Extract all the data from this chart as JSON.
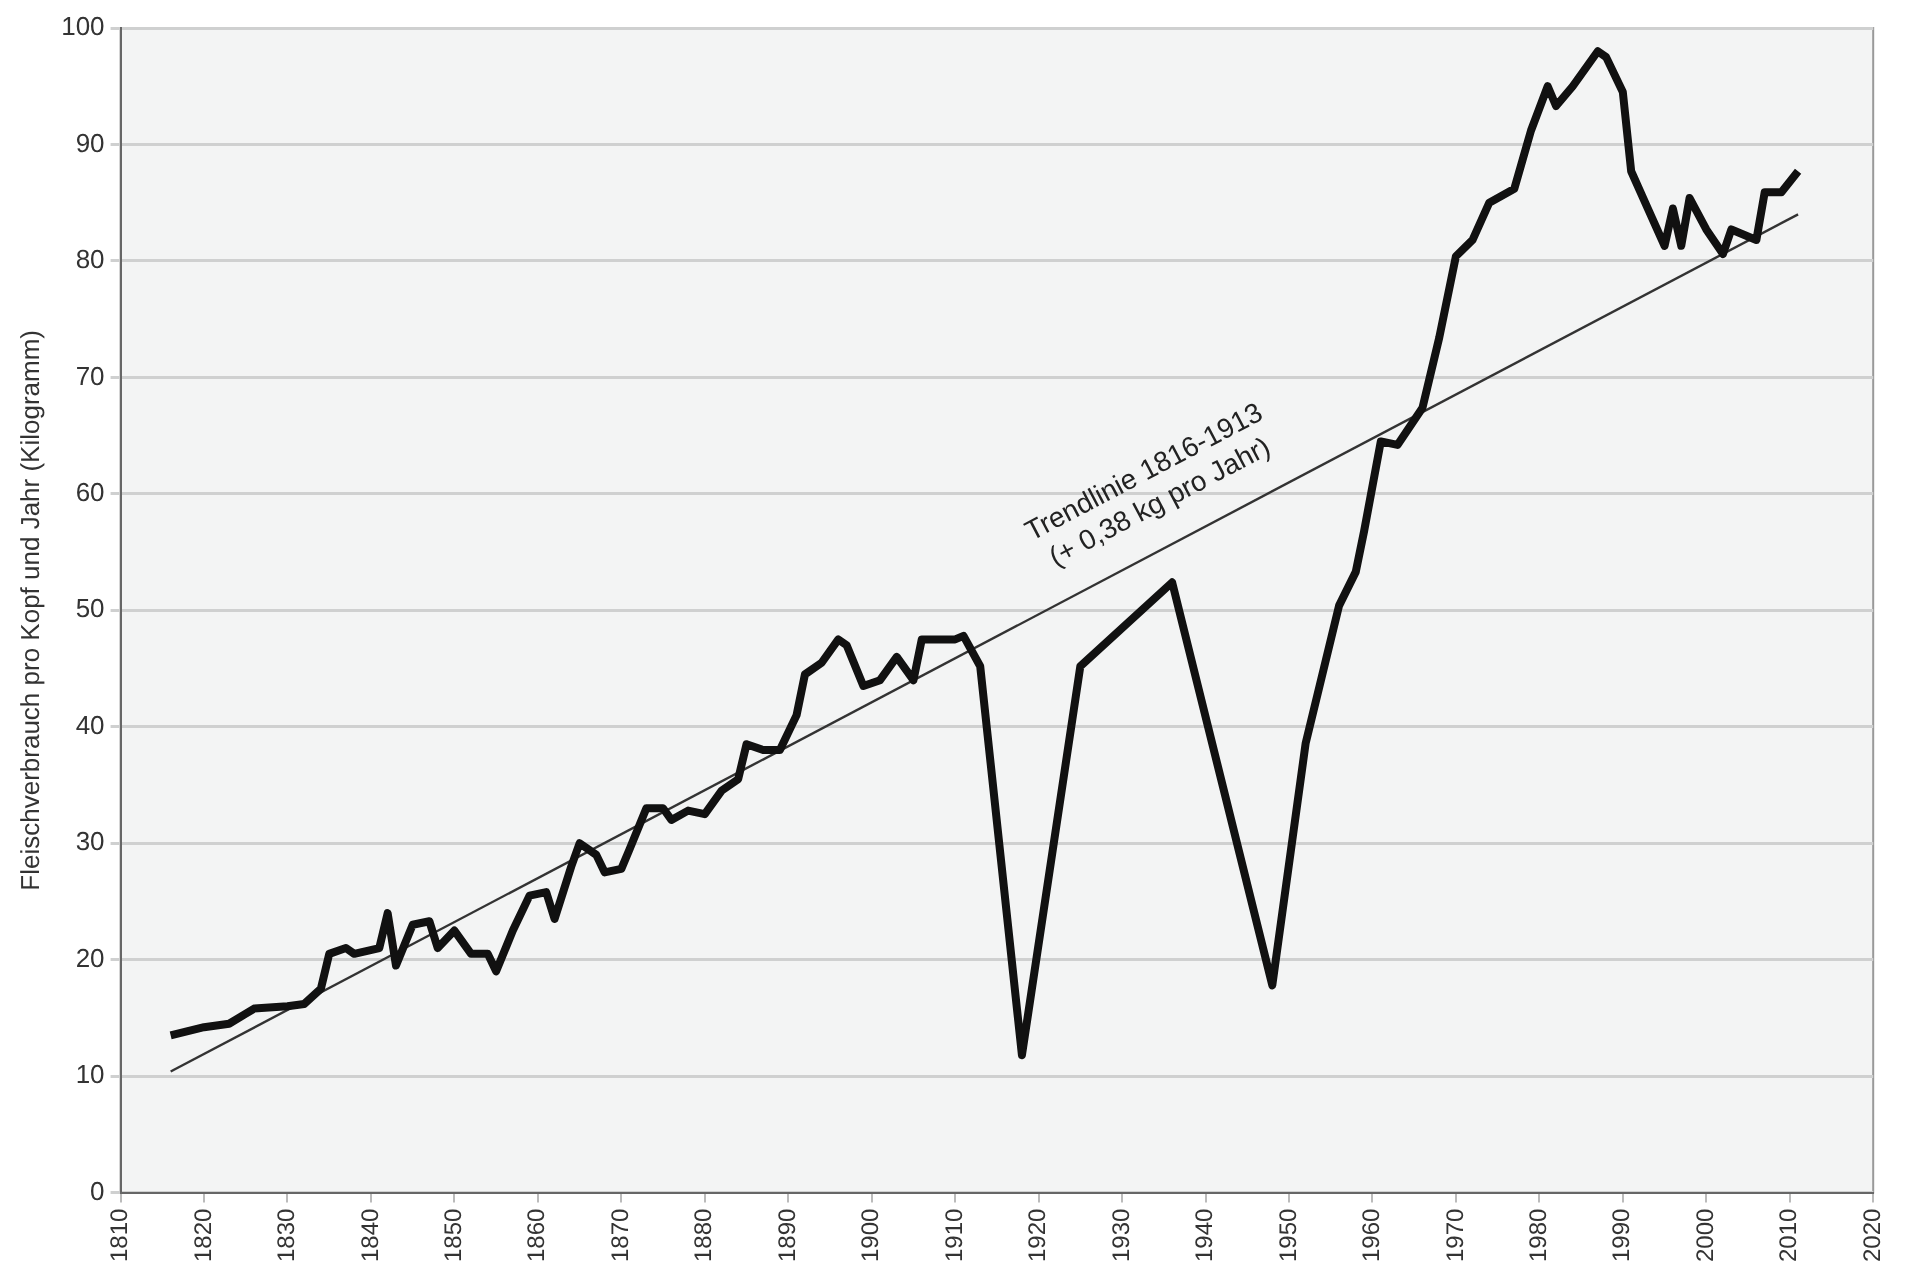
{
  "chart_data": {
    "type": "line",
    "ylabel": "Fleischverbrauch pro Kopf und Jahr (Kilogramm)",
    "xlim": [
      1810,
      2020
    ],
    "xticks": [
      1810,
      1820,
      1830,
      1840,
      1850,
      1860,
      1870,
      1880,
      1890,
      1900,
      1910,
      1920,
      1930,
      1940,
      1950,
      1960,
      1970,
      1980,
      1990,
      2000,
      2010,
      2020
    ],
    "ylim": [
      0,
      100
    ],
    "yticks": [
      0,
      10,
      20,
      30,
      40,
      50,
      60,
      70,
      80,
      90,
      100
    ],
    "grid": "y",
    "legend": false,
    "marker": "none",
    "line_style": "solid",
    "annotations": [
      "Trendlinie 1816-1913\n(+ 0,38 kg pro Jahr)"
    ],
    "series": [
      {
        "color": "#111111",
        "x": [
          1816,
          1820,
          1823,
          1826,
          1830,
          1832,
          1834,
          1835,
          1837,
          1838,
          1841,
          1842,
          1843,
          1845,
          1847,
          1848,
          1850,
          1852,
          1854,
          1855,
          1857,
          1859,
          1861,
          1862,
          1864,
          1865,
          1867,
          1868,
          1870,
          1871,
          1873,
          1875,
          1876,
          1878,
          1880,
          1882,
          1884,
          1885,
          1887,
          1889,
          1891,
          1892,
          1894,
          1896,
          1897,
          1899,
          1901,
          1903,
          1905,
          1906,
          1908,
          1910,
          1911,
          1913,
          1918,
          1925,
          1936,
          1948,
          1952,
          1956,
          1958,
          1959,
          1961,
          1963,
          1966,
          1968,
          1970,
          1972,
          1974,
          1977,
          1979,
          1981,
          1982,
          1984,
          1987,
          1988,
          1990,
          1991,
          1993,
          1995,
          1996,
          1997,
          1998,
          2000,
          2002,
          2003,
          2006,
          2007,
          2009,
          2011
        ],
        "values": [
          13.5,
          14.2,
          14.5,
          15.8,
          16,
          16.2,
          17.5,
          20.5,
          21,
          20.5,
          21,
          24,
          19.5,
          23,
          23.3,
          21,
          22.5,
          20.5,
          20.5,
          19,
          22.5,
          25.5,
          25.8,
          23.5,
          28,
          30,
          29,
          27.5,
          27.8,
          29.5,
          33,
          33,
          32,
          32.8,
          32.5,
          34.5,
          35.5,
          38.5,
          38,
          38,
          41,
          44.5,
          45.5,
          47.5,
          47,
          43.5,
          44,
          46,
          44,
          47.5,
          47.5,
          47.5,
          47.8,
          45.2,
          11.8,
          45.2,
          52.4,
          17.8,
          38.6,
          50.4,
          53.3,
          56.8,
          64.5,
          64.2,
          67.4,
          73.4,
          80.4,
          81.8,
          85,
          86.2,
          91.2,
          95,
          93.3,
          95,
          98,
          97.5,
          94.5,
          87.7,
          84.5,
          81.3,
          84.5,
          81.3,
          85.4,
          82.7,
          80.6,
          82.7,
          81.8,
          85.9,
          85.9,
          87.7
        ]
      },
      {
        "type": "line",
        "color": "#333333",
        "x": [
          1816,
          2011
        ],
        "values": [
          10.4,
          84
        ]
      }
    ]
  }
}
